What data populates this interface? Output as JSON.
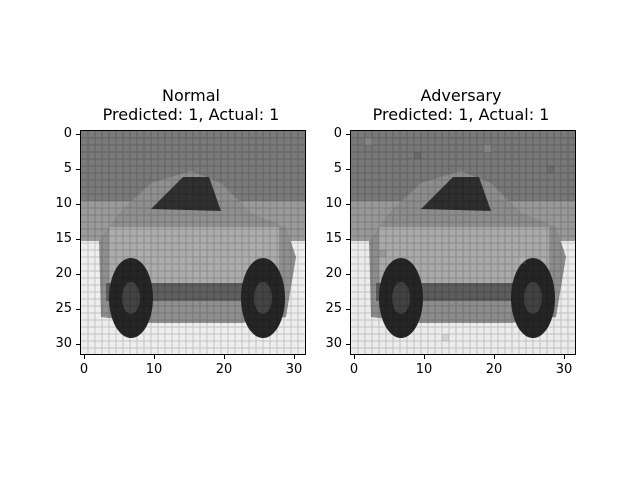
{
  "figure": {
    "panels": [
      {
        "title_line1": "Normal",
        "title_line2": "Predicted: 1, Actual: 1",
        "image_description": "grayscale low-resolution car photo (CIFAR-style)"
      },
      {
        "title_line1": "Adversary",
        "title_line2": "Predicted: 1, Actual: 1",
        "image_description": "grayscale low-resolution car photo with adversarial noise"
      }
    ],
    "y_ticks": [
      "0",
      "5",
      "10",
      "15",
      "20",
      "25",
      "30"
    ],
    "x_ticks": [
      "0",
      "10",
      "20",
      "30"
    ]
  },
  "colors": {
    "background": "#ffffff",
    "frame": "#000000",
    "sky": "#7a7a7a",
    "car_body": "#8f8f8f",
    "car_dark": "#2b2b2b",
    "ground": "#eeeeee"
  }
}
